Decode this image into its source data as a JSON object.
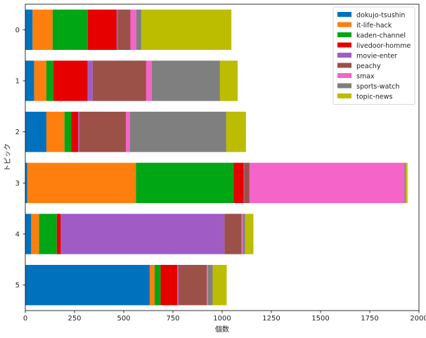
{
  "chart_data": {
    "type": "bar",
    "orientation": "horizontal",
    "stacked": true,
    "title": "",
    "xlabel": "個数",
    "ylabel": "トピック",
    "xlim": [
      0,
      2000
    ],
    "xticks": [
      "0",
      "250",
      "500",
      "750",
      "1000",
      "1250",
      "1500",
      "1750",
      "2000"
    ],
    "categories": [
      "0",
      "1",
      "2",
      "3",
      "4",
      "5"
    ],
    "legend_position": "top-right",
    "series": [
      {
        "name": "dokujo-tsushin",
        "color": "#0072bd",
        "values": [
          37,
          45,
          107,
          10,
          30,
          632
        ]
      },
      {
        "name": "it-life-hack",
        "color": "#ff7f0e",
        "values": [
          102,
          62,
          92,
          552,
          40,
          25
        ]
      },
      {
        "name": "kaden-channel",
        "color": "#00a614",
        "values": [
          178,
          35,
          35,
          497,
          90,
          30
        ]
      },
      {
        "name": "livedoor-homme",
        "color": "#e60000",
        "values": [
          147,
          175,
          35,
          51,
          20,
          85
        ]
      },
      {
        "name": "movie-enter",
        "color": "#a05cc4",
        "values": [
          5,
          25,
          5,
          2,
          832,
          6
        ]
      },
      {
        "name": "peachy",
        "color": "#9b5148",
        "values": [
          65,
          272,
          237,
          27,
          87,
          144
        ]
      },
      {
        "name": "smax",
        "color": "#f564c8",
        "values": [
          30,
          28,
          20,
          788,
          6,
          5
        ]
      },
      {
        "name": "sports-watch",
        "color": "#7f7f7f",
        "values": [
          25,
          347,
          490,
          5,
          12,
          25
        ]
      },
      {
        "name": "topic-news",
        "color": "#bcbd00",
        "values": [
          458,
          90,
          100,
          10,
          42,
          71
        ]
      }
    ]
  }
}
